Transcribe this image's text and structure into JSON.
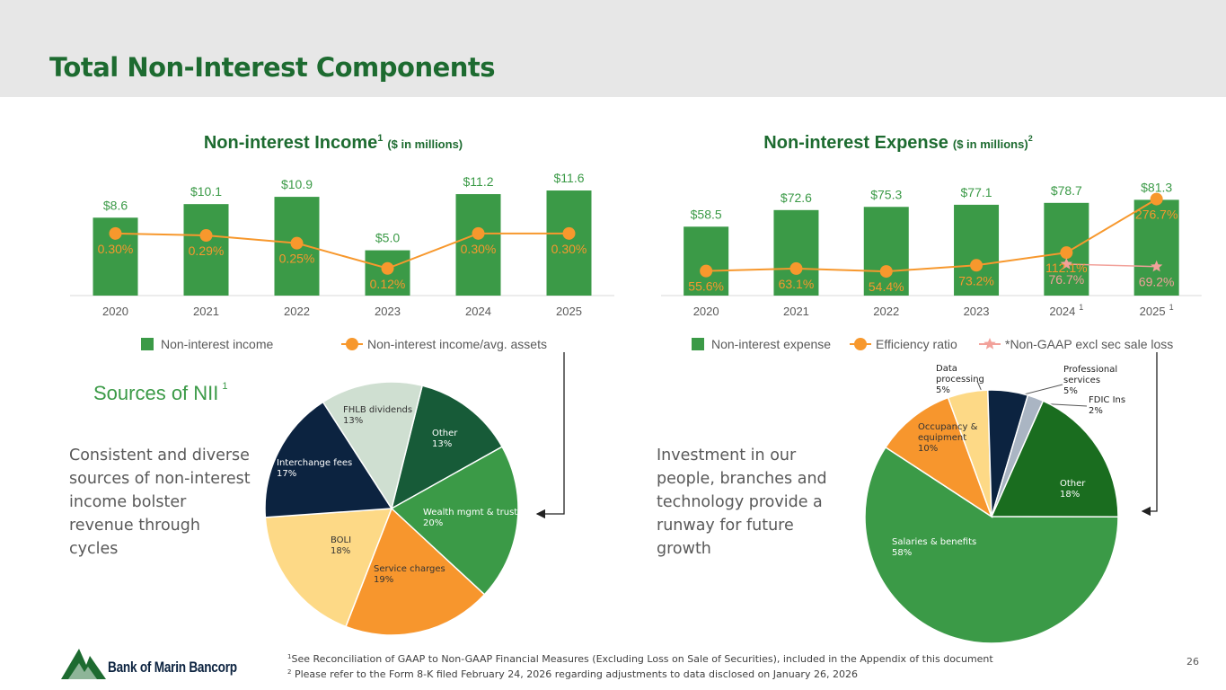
{
  "page": {
    "title": "Total Non-Interest Components",
    "left_text": "Consistent and diverse sources of non-interest income bolster revenue through cycles",
    "right_text": "Investment in our people, branches and technology provide a runway for future growth",
    "footnotes": [
      {
        "marker": "1",
        "text": "See Reconciliation of GAAP to Non-GAAP Financial Measures (Excluding Loss on Sale of Securities), included in the Appendix of this document"
      },
      {
        "marker": "2",
        "text": "Please refer to the Form 8-K filed February 24, 2026 regarding adjustments to data disclosed on January 26, 2026"
      }
    ],
    "page_number": "26",
    "logo": "Bank of Marin Bancorp"
  },
  "chart_data": [
    {
      "type": "combo",
      "title": "Non-interest Income",
      "title_superscript": "1",
      "subtitle": "($ in millions)",
      "categories": [
        "2020",
        "2021",
        "2022",
        "2023",
        "2024",
        "2025"
      ],
      "ylim": [
        0,
        12
      ],
      "y2lim": [
        -0.02,
        0.54
      ],
      "series": [
        {
          "name": "Non-interest income",
          "type": "bar",
          "color": "#3b9a47",
          "values": [
            8.6,
            10.1,
            10.9,
            5.0,
            11.2,
            11.6
          ],
          "value_labels": [
            "$8.6",
            "$10.1",
            "$10.9",
            "$5.0",
            "$11.2",
            "$11.6"
          ]
        },
        {
          "name": "Non-interest income/avg. assets",
          "type": "line",
          "marker": "circle",
          "axis": "y2",
          "color": "#f7982d",
          "values": [
            0.3,
            0.29,
            0.25,
            0.12,
            0.3,
            0.3
          ],
          "value_labels": [
            "0.30%",
            "0.29%",
            "0.25%",
            "0.12%",
            "0.30%",
            "0.30%"
          ]
        }
      ]
    },
    {
      "type": "combo",
      "title": "Non-interest Expense",
      "subtitle": "($ in millions)",
      "subtitle_superscript": "2",
      "categories": [
        "2020",
        "2021",
        "2022",
        "2023",
        "2024",
        "2025"
      ],
      "category_superscripts": [
        null,
        null,
        null,
        null,
        "1",
        "1"
      ],
      "ylim": [
        0,
        90
      ],
      "y2lim": [
        -20,
        306
      ],
      "series": [
        {
          "name": "Non-interest expense",
          "type": "bar",
          "color": "#3b9a47",
          "values": [
            58.5,
            72.6,
            75.3,
            77.1,
            78.7,
            81.3
          ],
          "value_labels": [
            "$58.5",
            "$72.6",
            "$75.3",
            "$77.1",
            "$78.7",
            "$81.3"
          ]
        },
        {
          "name": "Efficiency ratio",
          "type": "line",
          "marker": "circle",
          "axis": "y2",
          "color": "#f7982d",
          "values": [
            55.6,
            63.1,
            54.4,
            73.2,
            112.1,
            276.7
          ],
          "value_labels": [
            "55.6%",
            "63.1%",
            "54.4%",
            "73.2%",
            "112.1%",
            "276.7%"
          ]
        },
        {
          "name": "*Non-GAAP excl sec sale loss",
          "type": "line",
          "marker": "star",
          "axis": "y2",
          "color": "#f2a19a",
          "values": [
            null,
            null,
            null,
            null,
            76.7,
            69.2
          ],
          "value_labels": [
            null,
            null,
            null,
            null,
            "76.7%",
            "69.2%"
          ]
        }
      ]
    },
    {
      "type": "pie",
      "title": "Sources of NII",
      "title_superscript": "1",
      "categories": [
        "Other",
        "Wealth mgmt & trust",
        "Service charges",
        "BOLI",
        "Interchange fees",
        "FHLB dividends"
      ],
      "values": [
        13,
        20,
        19,
        18,
        17,
        13
      ],
      "value_labels": [
        "13%",
        "20%",
        "19%",
        "18%",
        "17%",
        "13%"
      ],
      "colors": [
        "#175b38",
        "#3b9a47",
        "#f7962d",
        "#fdd986",
        "#0c2340",
        "#cfdfd1"
      ]
    },
    {
      "type": "pie",
      "categories": [
        "Other",
        "Salaries & benefits",
        "Occupancy & equipment",
        "Data processing",
        "Professional services",
        "FDIC Ins"
      ],
      "values": [
        18,
        58,
        10,
        5,
        5,
        2
      ],
      "value_labels": [
        "18%",
        "58%",
        "10%",
        "5%",
        "5%",
        "2%"
      ],
      "colors": [
        "#1a6d1f",
        "#3b9a47",
        "#f7962d",
        "#fdd986",
        "#0c2340",
        "#aab5c3"
      ]
    }
  ]
}
